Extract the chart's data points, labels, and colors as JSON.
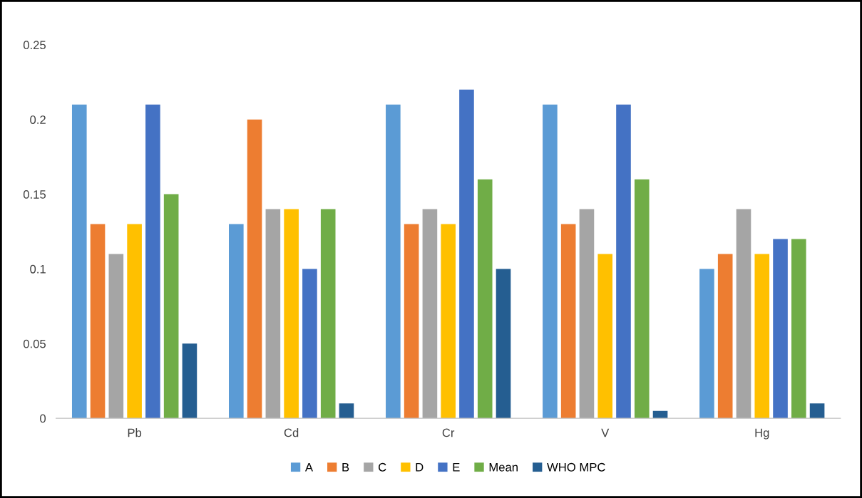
{
  "chart_data": {
    "type": "bar",
    "categories": [
      "Pb",
      "Cd",
      "Cr",
      "V",
      "Hg"
    ],
    "series": [
      {
        "name": "A",
        "color": "#5b9bd5",
        "values": [
          0.21,
          0.13,
          0.21,
          0.21,
          0.1
        ]
      },
      {
        "name": "B",
        "color": "#ed7d31",
        "values": [
          0.13,
          0.2,
          0.13,
          0.13,
          0.11
        ]
      },
      {
        "name": "C",
        "color": "#a5a5a5",
        "values": [
          0.11,
          0.14,
          0.14,
          0.14,
          0.14
        ]
      },
      {
        "name": "D",
        "color": "#ffc000",
        "values": [
          0.13,
          0.14,
          0.13,
          0.11,
          0.11
        ]
      },
      {
        "name": "E",
        "color": "#4472c4",
        "values": [
          0.21,
          0.1,
          0.22,
          0.21,
          0.12
        ]
      },
      {
        "name": "Mean",
        "color": "#70ad47",
        "values": [
          0.15,
          0.14,
          0.16,
          0.16,
          0.12
        ]
      },
      {
        "name": "WHO MPC",
        "color": "#255e91",
        "values": [
          0.05,
          0.01,
          0.1,
          0.005,
          0.01
        ]
      }
    ],
    "ylim": [
      0,
      0.25
    ],
    "yticks": [
      0,
      {
        "value": 0.05,
        "label": "0.05"
      },
      {
        "value": 0.1,
        "label": "0.1"
      },
      {
        "value": 0.15,
        "label": "0.15"
      },
      {
        "value": 0.2,
        "label": "0.2"
      },
      {
        "value": 0.25,
        "label": "0.25"
      }
    ],
    "grid": false,
    "legend": "bottom"
  }
}
